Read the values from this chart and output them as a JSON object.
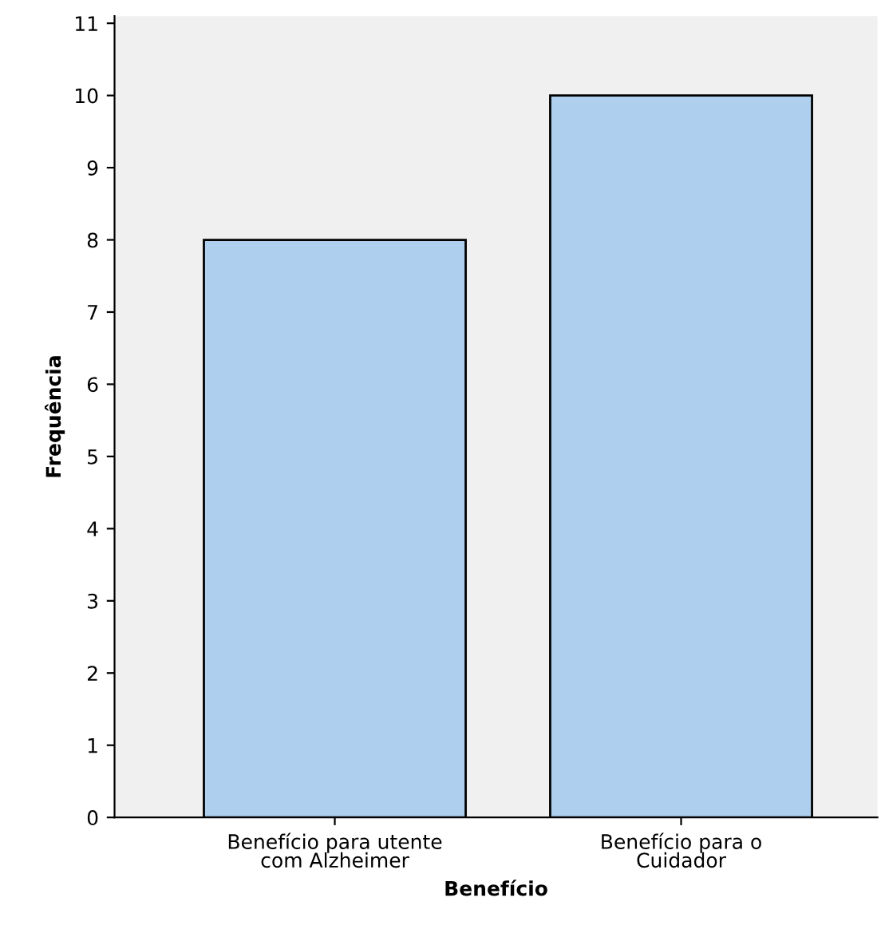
{
  "chart_data": {
    "type": "bar",
    "xlabel": "Benefício",
    "ylabel": "Frequência",
    "categories": [
      "Benefício para utente\ncom Alzheimer",
      "Benefício para o\nCuidador"
    ],
    "values": [
      8,
      10
    ],
    "color": "#aecfee",
    "ylim": [
      0,
      11.1
    ],
    "yticks": [
      0,
      1,
      2,
      3,
      4,
      5,
      6,
      7,
      8,
      9,
      10,
      11
    ],
    "grid": false
  }
}
